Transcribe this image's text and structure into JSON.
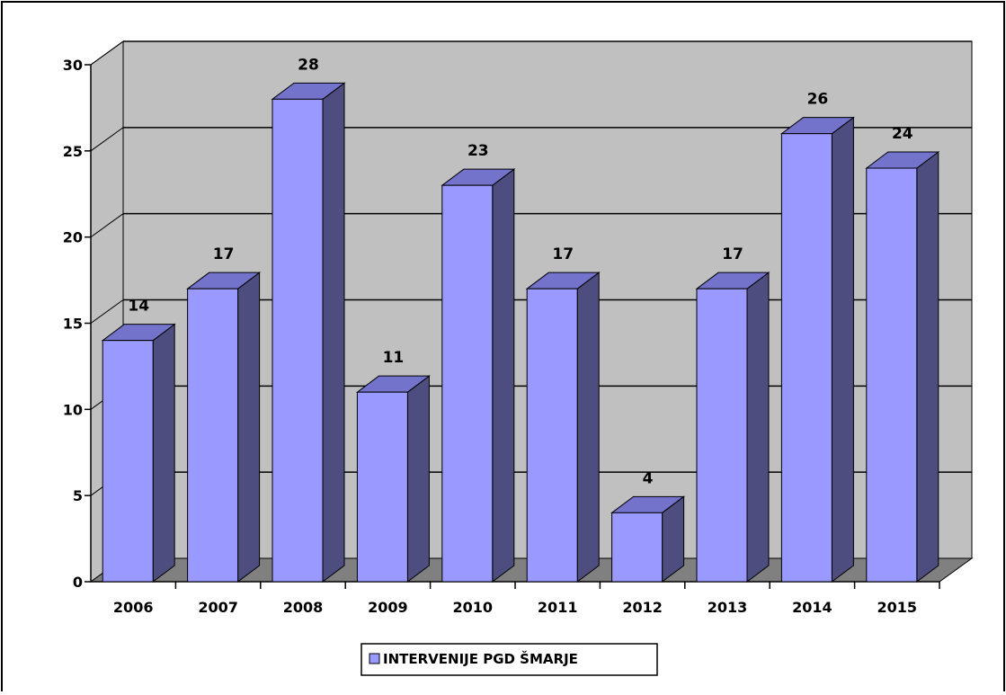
{
  "chart_data": {
    "type": "bar",
    "categories": [
      "2006",
      "2007",
      "2008",
      "2009",
      "2010",
      "2011",
      "2012",
      "2013",
      "2014",
      "2015"
    ],
    "series": [
      {
        "name": "INTERVENIJE PGD ŠMARJE",
        "values": [
          14,
          17,
          28,
          11,
          23,
          17,
          4,
          17,
          26,
          24
        ]
      }
    ],
    "ylim": [
      0,
      30
    ],
    "y_ticks": [
      "0",
      "5",
      "10",
      "15",
      "20",
      "25",
      "30"
    ],
    "grid": true,
    "legend_position": "bottom",
    "style": "3d-column",
    "colors": {
      "bar_front": "#9999ff",
      "bar_side": "#4d4d80",
      "bar_top": "#7373cc",
      "back_wall": "#c0c0c0",
      "floor": "#808080",
      "gridline": "#000000"
    }
  }
}
